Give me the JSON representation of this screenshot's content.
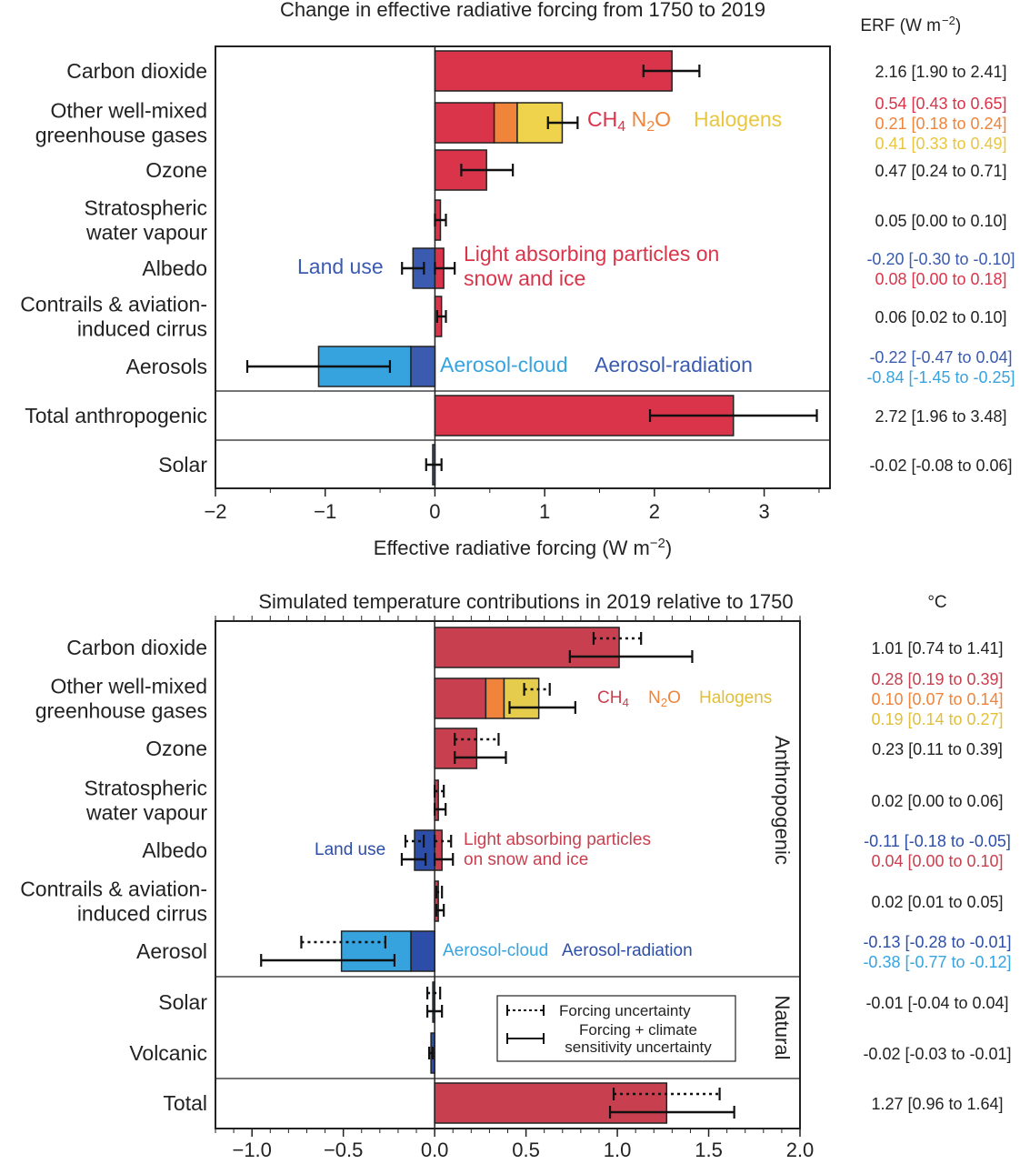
{
  "chart_data": [
    {
      "type": "bar",
      "orientation": "horizontal",
      "title": "Change in effective radiative forcing from 1750 to 2019",
      "value_header": "ERF (W m−2)",
      "xlabel": "Effective radiative forcing (W m−2)",
      "xlim": [
        -2,
        3.6
      ],
      "xticks": [
        {
          "v": -2,
          "label": "−2"
        },
        {
          "v": -1,
          "label": "−1"
        },
        {
          "v": 0,
          "label": "0"
        },
        {
          "v": 1,
          "label": "1"
        },
        {
          "v": 2,
          "label": "2"
        },
        {
          "v": 3,
          "label": "3"
        }
      ],
      "categories": [
        {
          "label": [
            "Carbon dioxide"
          ],
          "segments": [
            {
              "name": "CO2",
              "start": 0,
              "end": 2.16,
              "color": "#d9344a"
            }
          ],
          "errorbars": [
            {
              "center": 2.16,
              "low": 1.9,
              "high": 2.41,
              "style": "solid"
            }
          ],
          "value_texts": [
            {
              "text": "2.16 [1.90 to 2.41]",
              "color": "#222222"
            }
          ]
        },
        {
          "label": [
            "Other well-mixed",
            "greenhouse gases"
          ],
          "segments": [
            {
              "name": "CH4",
              "start": 0,
              "end": 0.54,
              "color": "#d9344a"
            },
            {
              "name": "N2O",
              "start": 0.54,
              "end": 0.75,
              "color": "#f0843a"
            },
            {
              "name": "Halogens",
              "start": 0.75,
              "end": 1.16,
              "color": "#efd34d"
            }
          ],
          "errorbars": [
            {
              "center": 1.16,
              "low": 1.03,
              "high": 1.3,
              "style": "solid"
            }
          ],
          "value_texts": [
            {
              "text": "0.54 [0.43 to 0.65]",
              "color": "#d9344a"
            },
            {
              "text": "0.21 [0.18 to 0.24]",
              "color": "#f0843a"
            },
            {
              "text": "0.41 [0.33 to 0.49]",
              "color": "#e8c640"
            }
          ]
        },
        {
          "label": [
            "Ozone"
          ],
          "segments": [
            {
              "name": "Ozone",
              "start": 0,
              "end": 0.47,
              "color": "#d9344a"
            }
          ],
          "errorbars": [
            {
              "center": 0.47,
              "low": 0.24,
              "high": 0.71,
              "style": "solid"
            }
          ],
          "value_texts": [
            {
              "text": "0.47 [0.24 to 0.71]",
              "color": "#222222"
            }
          ]
        },
        {
          "label": [
            "Stratospheric",
            "water vapour"
          ],
          "segments": [
            {
              "name": "H2O",
              "start": 0,
              "end": 0.05,
              "color": "#d9344a"
            }
          ],
          "errorbars": [
            {
              "center": 0.05,
              "low": 0.0,
              "high": 0.1,
              "style": "solid"
            }
          ],
          "value_texts": [
            {
              "text": "0.05 [0.00 to 0.10]",
              "color": "#222222"
            }
          ]
        },
        {
          "label": [
            "Albedo"
          ],
          "segments": [
            {
              "name": "Land use",
              "start": 0,
              "end": -0.2,
              "color": "#3a5bb0"
            },
            {
              "name": "Light absorbing particles",
              "start": 0,
              "end": 0.08,
              "color": "#d9344a"
            }
          ],
          "errorbars": [
            {
              "center": -0.2,
              "low": -0.3,
              "high": -0.1,
              "style": "solid"
            },
            {
              "center": 0.08,
              "low": 0.0,
              "high": 0.18,
              "style": "solid"
            }
          ],
          "value_texts": [
            {
              "text": "-0.20 [-0.30 to -0.10]",
              "color": "#3a5bb0"
            },
            {
              "text": "0.08 [0.00 to 0.18]",
              "color": "#d9344a"
            }
          ]
        },
        {
          "label": [
            "Contrails & aviation-",
            "induced cirrus"
          ],
          "segments": [
            {
              "name": "Contrails",
              "start": 0,
              "end": 0.06,
              "color": "#d9344a"
            }
          ],
          "errorbars": [
            {
              "center": 0.06,
              "low": 0.02,
              "high": 0.1,
              "style": "solid"
            }
          ],
          "value_texts": [
            {
              "text": "0.06 [0.02 to 0.10]",
              "color": "#222222"
            }
          ]
        },
        {
          "label": [
            "Aerosols"
          ],
          "segments": [
            {
              "name": "Aerosol-radiation",
              "start": 0,
              "end": -0.22,
              "color": "#3a5bb0"
            },
            {
              "name": "Aerosol-cloud",
              "start": -0.22,
              "end": -1.06,
              "color": "#36a3df"
            }
          ],
          "errorbars": [
            {
              "center": -1.06,
              "low": -1.71,
              "high": -0.41,
              "style": "solid"
            }
          ],
          "value_texts": [
            {
              "text": "-0.22 [-0.47 to 0.04]",
              "color": "#3a5bb0"
            },
            {
              "text": "-0.84 [-1.45 to -0.25]",
              "color": "#36a3df"
            }
          ]
        },
        {
          "label": [
            "Total anthropogenic"
          ],
          "segments": [
            {
              "name": "Total anthropogenic",
              "start": 0,
              "end": 2.72,
              "color": "#d9344a"
            }
          ],
          "errorbars": [
            {
              "center": 2.72,
              "low": 1.96,
              "high": 3.48,
              "style": "solid"
            }
          ],
          "value_texts": [
            {
              "text": "2.72 [1.96 to 3.48]",
              "color": "#222222"
            }
          ]
        },
        {
          "label": [
            "Solar"
          ],
          "segments": [
            {
              "name": "Solar",
              "start": 0,
              "end": -0.02,
              "color": "#3a5bb0"
            }
          ],
          "errorbars": [
            {
              "center": -0.02,
              "low": -0.08,
              "high": 0.06,
              "style": "solid"
            }
          ],
          "value_texts": [
            {
              "text": "-0.02 [-0.08 to 0.06]",
              "color": "#222222"
            }
          ]
        }
      ],
      "annotations": [
        {
          "text": "CH4 N2O",
          "parts": [
            {
              "t": "CH",
              "color": "#d9344a"
            },
            {
              "t": "4",
              "color": "#d9344a",
              "sub": true
            },
            {
              "t": " N",
              "color": "#f0843a"
            },
            {
              "t": "2",
              "color": "#f0843a",
              "sub": true
            },
            {
              "t": "O",
              "color": "#f0843a"
            }
          ]
        },
        {
          "text": "Halogens",
          "color": "#e8c640"
        },
        {
          "text": "Land use",
          "color": "#3a5bb0"
        },
        {
          "text": "Light absorbing particles on",
          "color": "#d9344a"
        },
        {
          "text": "snow and ice",
          "color": "#d9344a"
        },
        {
          "text": "Aerosol-cloud",
          "color": "#36a3df"
        },
        {
          "text": "Aerosol-radiation",
          "color": "#3a5bb0"
        }
      ]
    },
    {
      "type": "bar",
      "orientation": "horizontal",
      "title": "Simulated temperature contributions in 2019 relative to 1750",
      "value_header": "°C",
      "xlim": [
        -1.2,
        2.0
      ],
      "xticks": [
        {
          "v": -1.0,
          "label": "−1.0"
        },
        {
          "v": -0.5,
          "label": "−0.5"
        },
        {
          "v": 0.0,
          "label": "0.0"
        },
        {
          "v": 0.5,
          "label": "0.5"
        },
        {
          "v": 1.0,
          "label": "1.0"
        },
        {
          "v": 1.5,
          "label": "1.5"
        },
        {
          "v": 2.0,
          "label": "2.0"
        }
      ],
      "group_labels": [
        "Anthropogenic",
        "Natural"
      ],
      "categories": [
        {
          "label": [
            "Carbon dioxide"
          ],
          "segments": [
            {
              "name": "CO2",
              "start": 0,
              "end": 1.01,
              "color": "#c8404f"
            }
          ],
          "errorbars": [
            {
              "center": 1.01,
              "low": 0.87,
              "high": 1.13,
              "style": "dotted"
            },
            {
              "center": 1.01,
              "low": 0.74,
              "high": 1.41,
              "style": "solid"
            }
          ],
          "value_texts": [
            {
              "text": "1.01 [0.74 to 1.41]",
              "color": "#222222"
            }
          ]
        },
        {
          "label": [
            "Other well-mixed",
            "greenhouse gases"
          ],
          "segments": [
            {
              "name": "CH4",
              "start": 0,
              "end": 0.28,
              "color": "#c8404f"
            },
            {
              "name": "N2O",
              "start": 0.28,
              "end": 0.38,
              "color": "#f0843a"
            },
            {
              "name": "Halogens",
              "start": 0.38,
              "end": 0.57,
              "color": "#e5cc4d"
            }
          ],
          "errorbars": [
            {
              "center": 0.57,
              "low": 0.49,
              "high": 0.63,
              "style": "dotted"
            },
            {
              "center": 0.57,
              "low": 0.41,
              "high": 0.77,
              "style": "solid"
            }
          ],
          "value_texts": [
            {
              "text": "0.28 [0.19 to 0.39]",
              "color": "#c8404f"
            },
            {
              "text": "0.10 [0.07 to 0.14]",
              "color": "#f0843a"
            },
            {
              "text": "0.19 [0.14 to 0.27]",
              "color": "#e0bf3a"
            }
          ]
        },
        {
          "label": [
            "Ozone"
          ],
          "segments": [
            {
              "name": "Ozone",
              "start": 0,
              "end": 0.23,
              "color": "#c8404f"
            }
          ],
          "errorbars": [
            {
              "center": 0.23,
              "low": 0.11,
              "high": 0.35,
              "style": "dotted"
            },
            {
              "center": 0.23,
              "low": 0.11,
              "high": 0.39,
              "style": "solid"
            }
          ],
          "value_texts": [
            {
              "text": "0.23 [0.11 to 0.39]",
              "color": "#222222"
            }
          ]
        },
        {
          "label": [
            "Stratospheric",
            "water vapour"
          ],
          "segments": [
            {
              "name": "H2O",
              "start": 0,
              "end": 0.02,
              "color": "#c8404f"
            }
          ],
          "errorbars": [
            {
              "center": 0.02,
              "low": 0.0,
              "high": 0.05,
              "style": "dotted"
            },
            {
              "center": 0.02,
              "low": 0.0,
              "high": 0.06,
              "style": "solid"
            }
          ],
          "value_texts": [
            {
              "text": "0.02 [0.00 to 0.06]",
              "color": "#222222"
            }
          ]
        },
        {
          "label": [
            "Albedo"
          ],
          "segments": [
            {
              "name": "Land use",
              "start": 0,
              "end": -0.11,
              "color": "#2c4ea8"
            },
            {
              "name": "Light absorbing particles",
              "start": 0,
              "end": 0.04,
              "color": "#c8404f"
            }
          ],
          "errorbars": [
            {
              "center": -0.11,
              "low": -0.16,
              "high": -0.06,
              "style": "dotted"
            },
            {
              "center": -0.11,
              "low": -0.18,
              "high": -0.05,
              "style": "solid"
            },
            {
              "center": 0.04,
              "low": 0.0,
              "high": 0.09,
              "style": "dotted"
            },
            {
              "center": 0.04,
              "low": 0.0,
              "high": 0.1,
              "style": "solid"
            }
          ],
          "value_texts": [
            {
              "text": "-0.11 [-0.18 to -0.05]",
              "color": "#2c4ea8"
            },
            {
              "text": "0.04 [0.00 to 0.10]",
              "color": "#c8404f"
            }
          ]
        },
        {
          "label": [
            "Contrails & aviation-",
            "induced cirrus"
          ],
          "segments": [
            {
              "name": "Contrails",
              "start": 0,
              "end": 0.02,
              "color": "#c8404f"
            }
          ],
          "errorbars": [
            {
              "center": 0.02,
              "low": 0.01,
              "high": 0.04,
              "style": "dotted"
            },
            {
              "center": 0.02,
              "low": 0.01,
              "high": 0.05,
              "style": "solid"
            }
          ],
          "value_texts": [
            {
              "text": "0.02 [0.01 to 0.05]",
              "color": "#222222"
            }
          ]
        },
        {
          "label": [
            "Aerosol"
          ],
          "segments": [
            {
              "name": "Aerosol-radiation",
              "start": 0,
              "end": -0.13,
              "color": "#2c4ea8"
            },
            {
              "name": "Aerosol-cloud",
              "start": -0.13,
              "end": -0.51,
              "color": "#36a3df"
            }
          ],
          "errorbars": [
            {
              "center": -0.51,
              "low": -0.73,
              "high": -0.27,
              "style": "dotted"
            },
            {
              "center": -0.51,
              "low": -0.95,
              "high": -0.22,
              "style": "solid"
            }
          ],
          "value_texts": [
            {
              "text": "-0.13 [-0.28 to -0.01]",
              "color": "#2c4ea8"
            },
            {
              "text": "-0.38 [-0.77 to -0.12]",
              "color": "#36a3df"
            }
          ]
        },
        {
          "label": [
            "Solar"
          ],
          "segments": [
            {
              "name": "Solar",
              "start": 0,
              "end": -0.01,
              "color": "#2c4ea8"
            }
          ],
          "errorbars": [
            {
              "center": -0.01,
              "low": -0.04,
              "high": 0.03,
              "style": "dotted"
            },
            {
              "center": -0.01,
              "low": -0.04,
              "high": 0.04,
              "style": "solid"
            }
          ],
          "value_texts": [
            {
              "text": "-0.01 [-0.04 to 0.04]",
              "color": "#222222"
            }
          ]
        },
        {
          "label": [
            "Volcanic"
          ],
          "segments": [
            {
              "name": "Volcanic",
              "start": 0,
              "end": -0.02,
              "color": "#2c4ea8"
            }
          ],
          "errorbars": [
            {
              "center": -0.02,
              "low": -0.03,
              "high": -0.01,
              "style": "solid"
            }
          ],
          "value_texts": [
            {
              "text": "-0.02 [-0.03 to -0.01]",
              "color": "#222222"
            }
          ]
        },
        {
          "label": [
            "Total"
          ],
          "segments": [
            {
              "name": "Total",
              "start": 0,
              "end": 1.27,
              "color": "#c8404f"
            }
          ],
          "errorbars": [
            {
              "center": 1.27,
              "low": 0.98,
              "high": 1.56,
              "style": "dotted"
            },
            {
              "center": 1.27,
              "low": 0.96,
              "high": 1.64,
              "style": "solid"
            }
          ],
          "value_texts": [
            {
              "text": "1.27 [0.96 to 1.64]",
              "color": "#222222"
            }
          ]
        }
      ],
      "annotations": [
        {
          "text": "CH4",
          "parts": [
            {
              "t": "CH",
              "color": "#c8404f"
            },
            {
              "t": "4",
              "color": "#c8404f",
              "sub": true
            }
          ]
        },
        {
          "text": "N2O",
          "parts": [
            {
              "t": "N",
              "color": "#f0843a"
            },
            {
              "t": "2",
              "color": "#f0843a",
              "sub": true
            },
            {
              "t": "O",
              "color": "#f0843a"
            }
          ]
        },
        {
          "text": "Halogens",
          "color": "#e0bf3a"
        },
        {
          "text": "Land use",
          "color": "#2c4ea8"
        },
        {
          "text": "Light absorbing particles",
          "color": "#c8404f"
        },
        {
          "text": "on snow and ice",
          "color": "#c8404f"
        },
        {
          "text": "Aerosol-cloud",
          "color": "#36a3df"
        },
        {
          "text": "Aerosol-radiation",
          "color": "#2c4ea8"
        }
      ],
      "legend": {
        "placement": "lower-center",
        "entries": [
          {
            "style": "dotted",
            "label": [
              "Forcing uncertainty"
            ]
          },
          {
            "style": "solid",
            "label": [
              "Forcing + climate",
              "sensitivity uncertainty"
            ]
          }
        ]
      }
    }
  ]
}
